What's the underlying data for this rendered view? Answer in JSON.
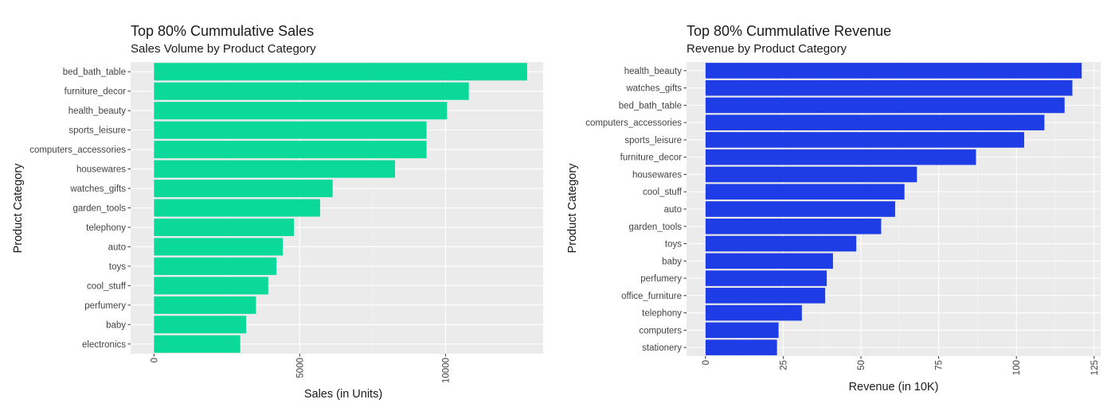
{
  "chart_data": [
    {
      "type": "bar",
      "orientation": "horizontal",
      "title": "Top 80% Cummulative Sales",
      "subtitle": "Sales Volume by Product Category",
      "xlabel": "Sales (in Units)",
      "ylabel": "Product Category",
      "xlim": [
        -800,
        13350
      ],
      "x_ticks": [
        0,
        5000,
        10000
      ],
      "x_tick_labels": [
        "0",
        "5000",
        "10000"
      ],
      "bar_color": "#0ad999",
      "panel_color": "#ebebeb",
      "grid": true,
      "categories": [
        "bed_bath_table",
        "furniture_decor",
        "health_beauty",
        "sports_leisure",
        "computers_accessories",
        "housewares",
        "watches_gifts",
        "garden_tools",
        "telephony",
        "auto",
        "toys",
        "cool_stuff",
        "perfumery",
        "baby",
        "electronics"
      ],
      "values": [
        12800,
        10800,
        10050,
        9350,
        9350,
        8270,
        6130,
        5700,
        4800,
        4420,
        4200,
        3920,
        3500,
        3160,
        2960
      ]
    },
    {
      "type": "bar",
      "orientation": "horizontal",
      "title": "Top 80% Cummulative Revenue",
      "subtitle": "Revenue by Product Category",
      "xlabel": "Revenue (in 10K)",
      "ylabel": "Product Category",
      "xlim": [
        -6.1,
        127.1
      ],
      "x_ticks": [
        0,
        25,
        50,
        75,
        100,
        125
      ],
      "x_tick_labels": [
        "0",
        "25",
        "50",
        "75",
        "100",
        "125"
      ],
      "bar_color": "#1f3de6",
      "panel_color": "#ebebeb",
      "grid": true,
      "categories": [
        "health_beauty",
        "watches_gifts",
        "bed_bath_table",
        "computers_accessories",
        "sports_leisure",
        "furniture_decor",
        "housewares",
        "cool_stuff",
        "auto",
        "garden_tools",
        "toys",
        "baby",
        "perfumery",
        "office_furniture",
        "telephony",
        "computers",
        "stationery"
      ],
      "values": [
        121,
        118,
        115.5,
        109,
        102.5,
        87,
        68,
        64,
        61,
        56.5,
        48.5,
        41,
        39,
        38.5,
        31,
        23.5,
        23
      ]
    }
  ]
}
